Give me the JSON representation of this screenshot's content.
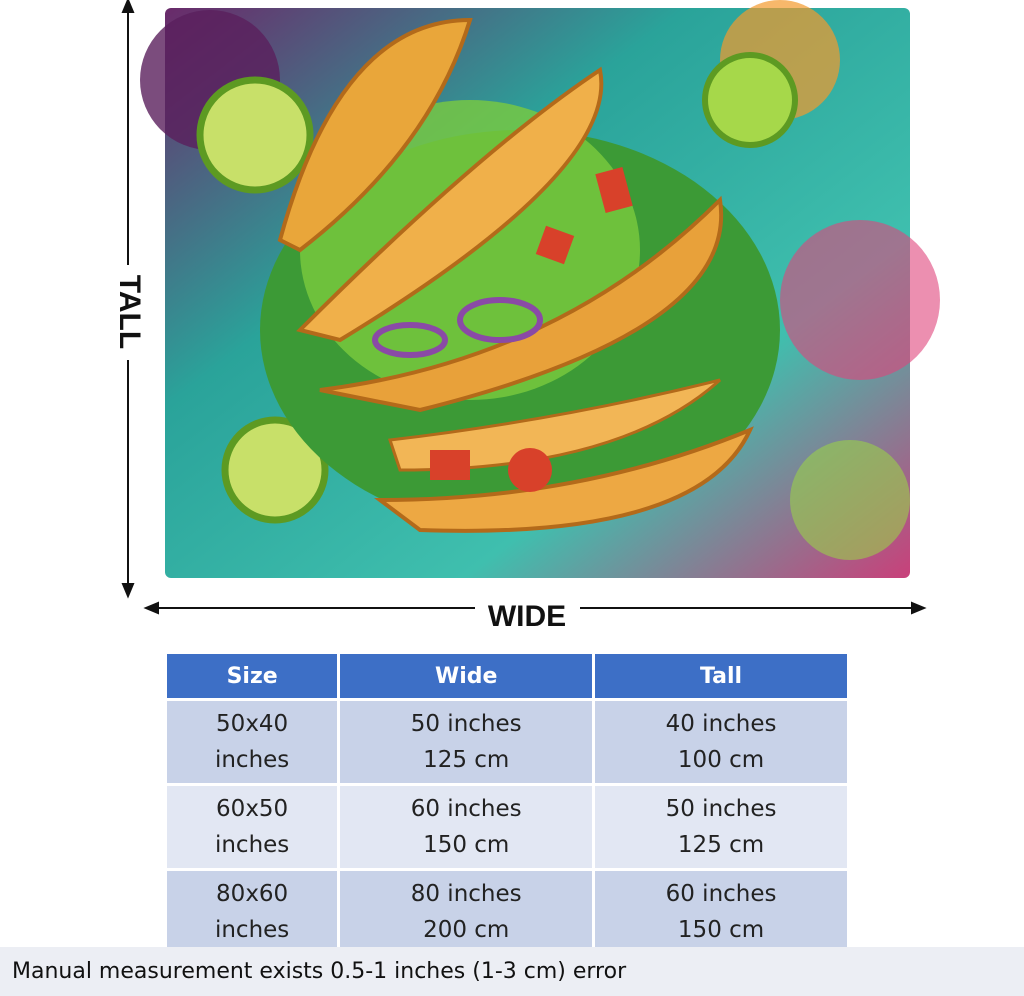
{
  "labels": {
    "tall": "TALL",
    "wide": "WIDE"
  },
  "table": {
    "header": [
      "Size",
      "Wide",
      "Tall"
    ],
    "rows": [
      [
        [
          "50x40",
          "inches"
        ],
        [
          "50 inches",
          "125 cm"
        ],
        [
          "40 inches",
          "100 cm"
        ]
      ],
      [
        [
          "60x50",
          "inches"
        ],
        [
          "60 inches",
          "150 cm"
        ],
        [
          "50 inches",
          "125 cm"
        ]
      ],
      [
        [
          "80x60",
          "inches"
        ],
        [
          "80 inches",
          "200 cm"
        ],
        [
          "60 inches",
          "150 cm"
        ]
      ]
    ]
  },
  "note": "Manual measurement exists 0.5-1 inches (1-3 cm) error"
}
